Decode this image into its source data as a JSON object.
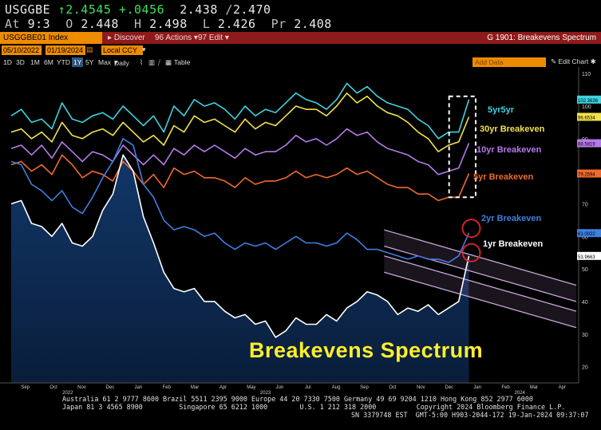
{
  "quote": {
    "symbol": "USGGBE",
    "last_prefix": "↑",
    "last": "2.4545",
    "change": "+.0456",
    "bid": "2.438",
    "ask": "2.470",
    "at_label": "At",
    "at_value": "9:3",
    "open_label": "O",
    "open": "2.448",
    "high_label": "H",
    "high": "2.498",
    "low_label": "L",
    "low": "2.426",
    "prev_label": "Pr",
    "prev": "2.408"
  },
  "toolbar": {
    "ticker": "USGGBE01 Index",
    "discover_label": "Discover",
    "actions_label": "Actions",
    "edit_label": "Edit",
    "window_title": "G 1901: Breakevens Spectrum"
  },
  "controls": {
    "start_date": "05/10/2022",
    "end_date": "01/19/2024",
    "currency": "Local CCY",
    "ranges": [
      "1D",
      "3D",
      "1M",
      "6M",
      "YTD",
      "1Y",
      "5Y",
      "Max"
    ],
    "active_range": "1Y",
    "period": "Daily",
    "table_label": "Table",
    "add_data_label": "Add Data",
    "edit_chart_label": "Edit Chart"
  },
  "colors": {
    "background": "#000000",
    "five_yr_five_yr": "#3fd2df",
    "thirty_yr": "#f2e24a",
    "ten_yr": "#b57be8",
    "five_yr": "#ee6a2c",
    "two_yr": "#3f7fe0",
    "one_yr": "#ffffff",
    "channel": "#c7a6d8",
    "highlight_circle": "#e0242c",
    "title_text": "#ffef2a",
    "area_fill": "#0d2a52"
  },
  "chart_data": {
    "type": "line",
    "title": "Breakevens Spectrum",
    "x_start": "2022-09",
    "x_end": "2024-04",
    "months": [
      "Sep",
      "Oct",
      "Nov",
      "Dec",
      "Jan",
      "Feb",
      "Mar",
      "Apr",
      "May",
      "Jun",
      "Jul",
      "Aug",
      "Sep",
      "Oct",
      "Nov",
      "Dec",
      "Jan",
      "Feb",
      "Mar",
      "Apr"
    ],
    "years": [
      "2022",
      "2023",
      "2024"
    ],
    "ylim": [
      15,
      112
    ],
    "yticks": [
      20,
      30,
      40,
      50,
      60,
      70,
      80,
      90,
      100,
      110
    ],
    "grid": false,
    "legend_placement": "right",
    "series": [
      {
        "name": "5yr5yr",
        "color_key": "five_yr_five_yr",
        "last_label": "102.3636",
        "values": [
          97,
          99,
          95,
          96,
          93,
          101,
          96,
          95,
          97,
          98,
          96,
          100,
          97,
          94,
          97,
          92,
          100,
          97,
          102,
          100,
          101,
          99,
          96,
          100,
          97,
          99,
          98,
          101,
          104,
          102,
          101,
          99,
          102,
          107,
          104,
          106,
          103,
          101,
          100,
          99,
          96,
          94,
          90,
          92,
          92,
          102
        ]
      },
      {
        "name": "30yr Breakeven",
        "color_key": "thirty_yr",
        "last_label": "96.6534",
        "values": [
          92,
          93,
          90,
          92,
          89,
          95,
          91,
          90,
          92,
          93,
          91,
          95,
          92,
          89,
          91,
          88,
          94,
          92,
          97,
          95,
          96,
          94,
          92,
          96,
          93,
          95,
          94,
          97,
          100,
          99,
          99,
          97,
          100,
          104,
          101,
          103,
          100,
          98,
          97,
          95,
          92,
          90,
          86,
          88,
          89,
          96.7
        ]
      },
      {
        "name": "10yr Breakeven",
        "color_key": "ten_yr",
        "last_label": "88.5819",
        "values": [
          87,
          88,
          85,
          88,
          84,
          89,
          86,
          83,
          86,
          85,
          83,
          88,
          85,
          82,
          85,
          82,
          87,
          85,
          88,
          86,
          88,
          86,
          84,
          87,
          85,
          86,
          86,
          88,
          91,
          89,
          90,
          88,
          90,
          93,
          91,
          92,
          89,
          87,
          86,
          85,
          83,
          82,
          79,
          80,
          81,
          88.6
        ]
      },
      {
        "name": "5yr Breakeven",
        "color_key": "five_yr",
        "last_label": "79.2594",
        "values": [
          82,
          83,
          80,
          82,
          79,
          85,
          82,
          78,
          80,
          79,
          77,
          83,
          80,
          76,
          79,
          75,
          81,
          79,
          80,
          78,
          78,
          77,
          75,
          78,
          76,
          77,
          77,
          78,
          80,
          78,
          79,
          78,
          79,
          81,
          79,
          80,
          78,
          76,
          75,
          75,
          73,
          73,
          71,
          72,
          72,
          79.3
        ]
      },
      {
        "name": "2yr Breakeven",
        "color_key": "two_yr",
        "last_label": "61.0022",
        "values": [
          83,
          82,
          76,
          74,
          71,
          74,
          69,
          67,
          72,
          78,
          83,
          90,
          88,
          76,
          72,
          65,
          62,
          63,
          62,
          60,
          61,
          58,
          56,
          58,
          57,
          58,
          56,
          58,
          60,
          58,
          58,
          57,
          58,
          61,
          59,
          56,
          56,
          55,
          54,
          53,
          54,
          53,
          53,
          52,
          54,
          61.0
        ]
      },
      {
        "name": "1yr Breakeven",
        "color_key": "one_yr",
        "last_label": "53.9663",
        "values": [
          70,
          71,
          64,
          63,
          60,
          64,
          58,
          57,
          60,
          68,
          73,
          85,
          80,
          66,
          58,
          49,
          44,
          43,
          44,
          40,
          40,
          37,
          35,
          36,
          33,
          34,
          29,
          31,
          35,
          33,
          33,
          36,
          34,
          38,
          40,
          43,
          42,
          40,
          36,
          38,
          37,
          39,
          36,
          38,
          40,
          54.0
        ]
      }
    ],
    "channel": {
      "upper_band": {
        "x_start": "2023-10-02",
        "y_start": [
          62,
          57
        ],
        "x_end": "2024-04",
        "y_end": [
          45,
          40
        ]
      },
      "lower_band": {
        "x_start": "2023-10-02",
        "y_start": [
          54,
          49
        ],
        "x_end": "2024-04",
        "y_end": [
          37,
          32
        ]
      }
    },
    "highlight_box": {
      "x_start": "2023-12-21",
      "x_end": "2024-01-19",
      "y_range": [
        72,
        103
      ]
    }
  }
}
